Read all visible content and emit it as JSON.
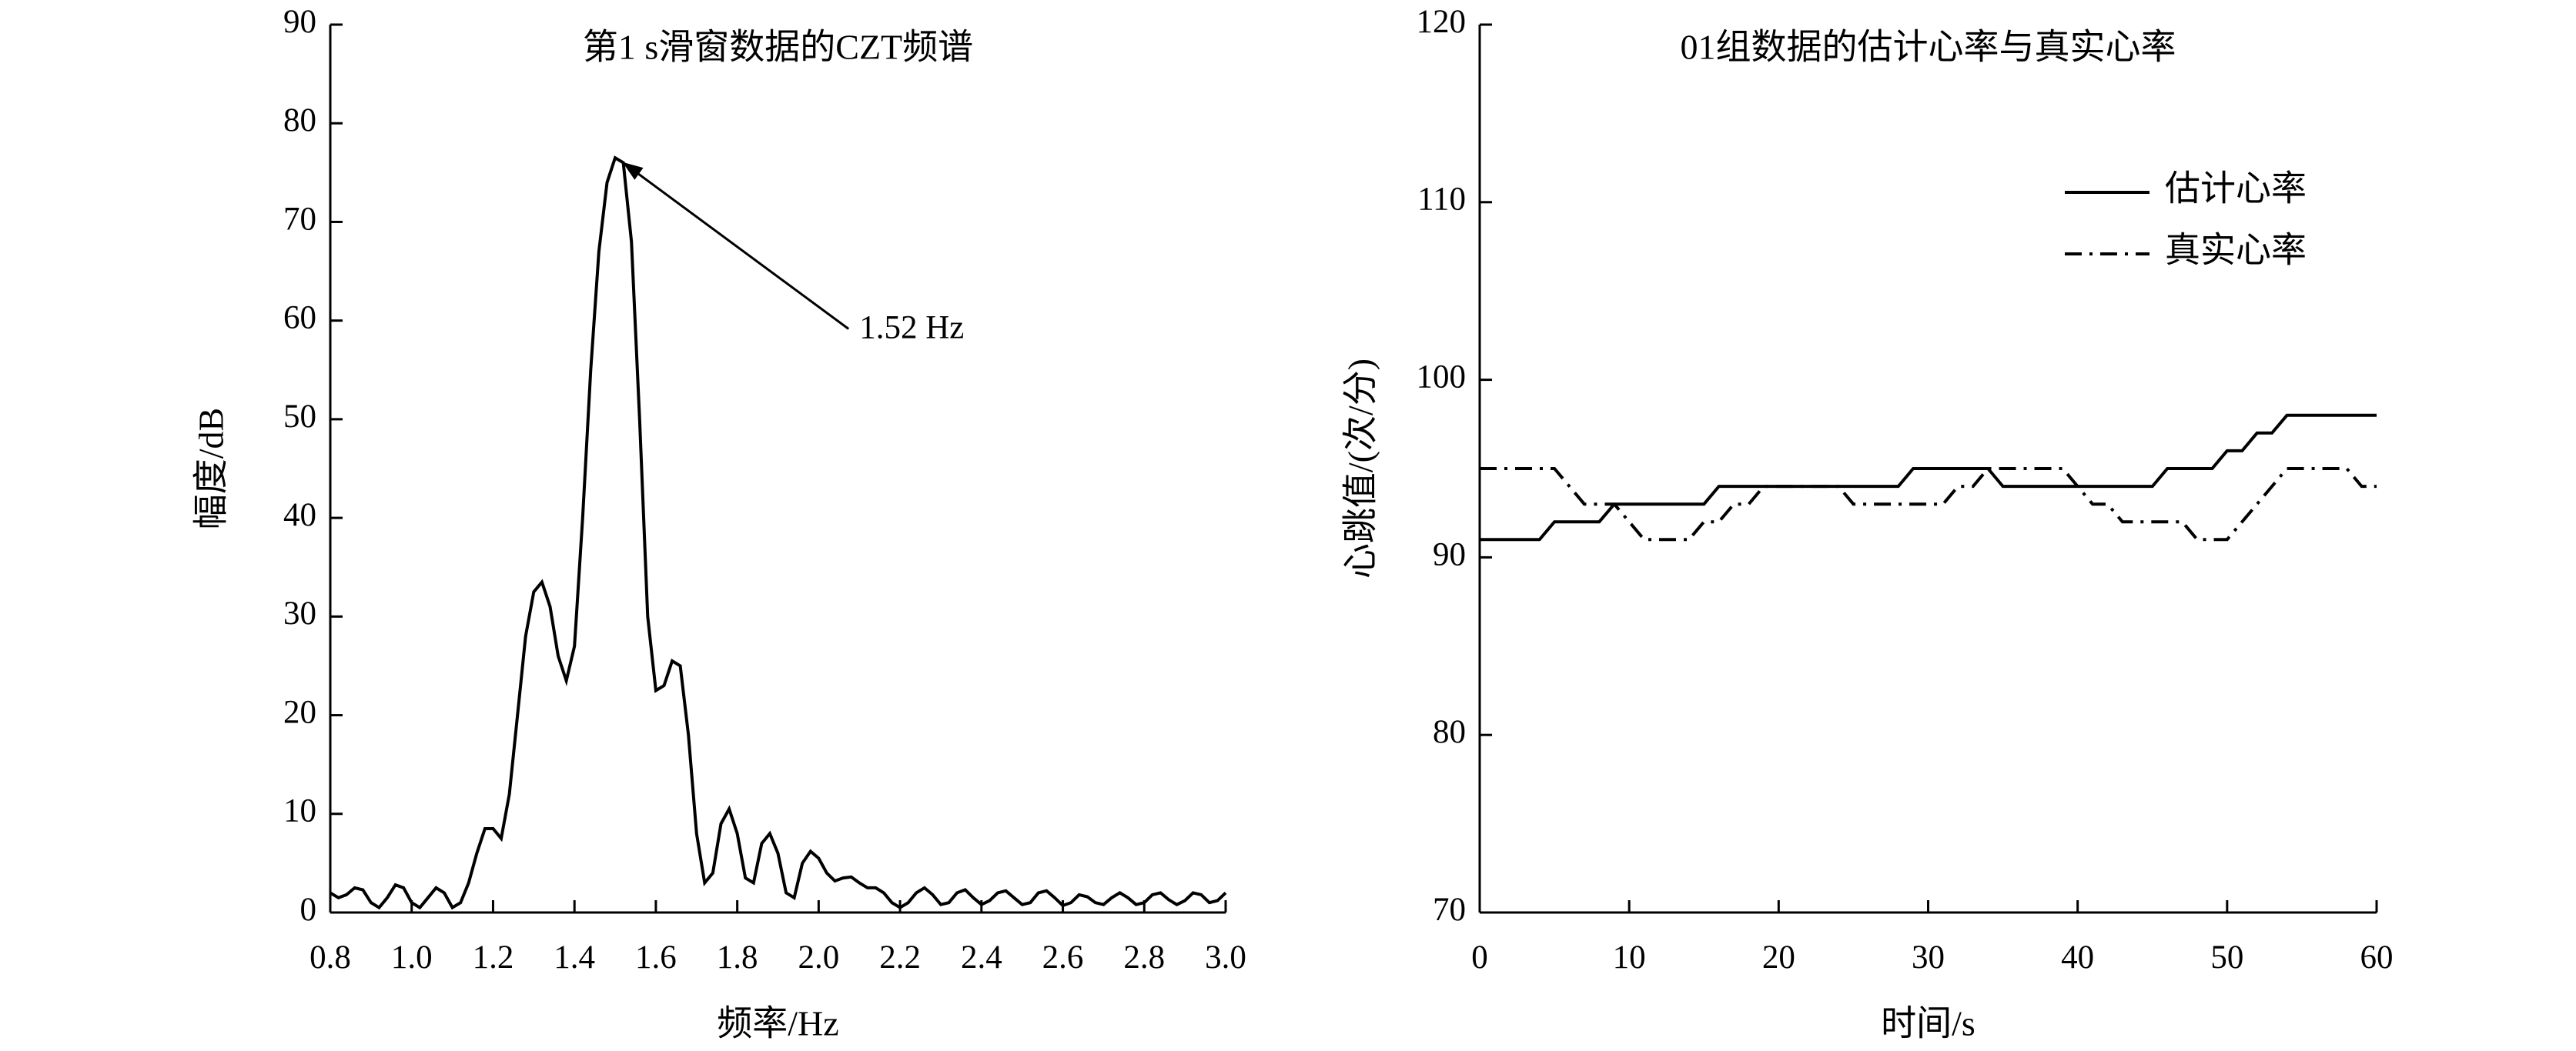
{
  "chart_data": [
    {
      "type": "line",
      "title": "第1 s滑窗数据的CZT频谱",
      "xlabel": "频率/Hz",
      "ylabel": "幅度/dB",
      "x": [
        0.8,
        0.82,
        0.84,
        0.86,
        0.88,
        0.9,
        0.92,
        0.94,
        0.96,
        0.98,
        1.0,
        1.02,
        1.04,
        1.06,
        1.08,
        1.1,
        1.12,
        1.14,
        1.16,
        1.18,
        1.2,
        1.22,
        1.24,
        1.26,
        1.28,
        1.3,
        1.32,
        1.34,
        1.36,
        1.38,
        1.4,
        1.42,
        1.44,
        1.46,
        1.48,
        1.5,
        1.52,
        1.54,
        1.56,
        1.58,
        1.6,
        1.62,
        1.64,
        1.66,
        1.68,
        1.7,
        1.72,
        1.74,
        1.76,
        1.78,
        1.8,
        1.82,
        1.84,
        1.86,
        1.88,
        1.9,
        1.92,
        1.94,
        1.96,
        1.98,
        2.0,
        2.02,
        2.04,
        2.06,
        2.08,
        2.1,
        2.12,
        2.14,
        2.16,
        2.18,
        2.2,
        2.22,
        2.24,
        2.26,
        2.28,
        2.3,
        2.32,
        2.34,
        2.36,
        2.38,
        2.4,
        2.42,
        2.44,
        2.46,
        2.48,
        2.5,
        2.52,
        2.54,
        2.56,
        2.58,
        2.6,
        2.62,
        2.64,
        2.66,
        2.68,
        2.7,
        2.72,
        2.74,
        2.76,
        2.78,
        2.8,
        2.82,
        2.84,
        2.86,
        2.88,
        2.9,
        2.92,
        2.94,
        2.96,
        2.98,
        3.0
      ],
      "series": [
        {
          "color": "#000000",
          "linestyle": "solid",
          "values": [
            2,
            1.5,
            1.8,
            2.5,
            2.3,
            1,
            0.5,
            1.5,
            2.8,
            2.5,
            1,
            0.5,
            1.5,
            2.5,
            2,
            0.5,
            1,
            3,
            6,
            8.5,
            8.5,
            7.5,
            12,
            20,
            28,
            32.5,
            33.5,
            31,
            26,
            23.5,
            27,
            40,
            55,
            67,
            74,
            76.5,
            76,
            68,
            50,
            30,
            22.5,
            23,
            25.5,
            25,
            18,
            8,
            3,
            4,
            9,
            10.5,
            8,
            3.5,
            3,
            7,
            8,
            6,
            2,
            1.5,
            5,
            6.2,
            5.5,
            4,
            3.2,
            3.5,
            3.6,
            3,
            2.5,
            2.5,
            2,
            1,
            0.5,
            1,
            2,
            2.5,
            1.8,
            0.8,
            1,
            2,
            2.3,
            1.5,
            0.8,
            1.2,
            2,
            2.2,
            1.5,
            0.8,
            1,
            2,
            2.2,
            1.5,
            0.7,
            1,
            1.8,
            1.6,
            1,
            0.8,
            1.5,
            2,
            1.5,
            0.8,
            1,
            1.8,
            2,
            1.3,
            0.8,
            1.2,
            2,
            1.8,
            1,
            1.2,
            2
          ]
        }
      ],
      "annotations": [
        {
          "text": "1.52 Hz",
          "xy": [
            1.52,
            76
          ],
          "xytext": [
            2.1,
            59
          ]
        }
      ],
      "xlim": [
        0.8,
        3.0
      ],
      "xticks": [
        0.8,
        {
          "value": 1,
          "label": "1.0"
        },
        1.2,
        1.4,
        1.6,
        1.8,
        {
          "value": 2,
          "label": "2.0"
        },
        2.2,
        2.4,
        2.6,
        2.8,
        {
          "value": 3,
          "label": "3.0"
        }
      ],
      "ylim": [
        0,
        90
      ],
      "yticks": [
        0,
        10,
        20,
        30,
        40,
        50,
        60,
        70,
        80,
        90
      ],
      "grid": false
    },
    {
      "type": "line",
      "title": "01组数据的估计心率与真实心率",
      "xlabel": "时间/s",
      "ylabel": "心跳值/(次/分)",
      "x": [
        0,
        1,
        2,
        3,
        4,
        5,
        6,
        7,
        8,
        9,
        10,
        11,
        12,
        13,
        14,
        15,
        16,
        17,
        18,
        19,
        20,
        21,
        22,
        23,
        24,
        25,
        26,
        27,
        28,
        29,
        30,
        31,
        32,
        33,
        34,
        35,
        36,
        37,
        38,
        39,
        40,
        41,
        42,
        43,
        44,
        45,
        46,
        47,
        48,
        49,
        50,
        51,
        52,
        53,
        54,
        55,
        56,
        57,
        58,
        59,
        60
      ],
      "series": [
        {
          "name": "估计心率",
          "color": "#000000",
          "linestyle": "solid",
          "values": [
            91,
            91,
            91,
            91,
            91,
            92,
            92,
            92,
            92,
            93,
            93,
            93,
            93,
            93,
            93,
            93,
            94,
            94,
            94,
            94,
            94,
            94,
            94,
            94,
            94,
            94,
            94,
            94,
            94,
            95,
            95,
            95,
            95,
            95,
            95,
            94,
            94,
            94,
            94,
            94,
            94,
            94,
            94,
            94,
            94,
            94,
            95,
            95,
            95,
            95,
            96,
            96,
            97,
            97,
            98,
            98,
            98,
            98,
            98,
            98,
            98
          ]
        },
        {
          "name": "真实心率",
          "color": "#000000",
          "linestyle": "dashdot",
          "values": [
            95,
            95,
            95,
            95,
            95,
            95,
            94,
            93,
            93,
            93,
            92,
            91,
            91,
            91,
            91,
            92,
            92,
            93,
            93,
            94,
            94,
            94,
            94,
            94,
            94,
            93,
            93,
            93,
            93,
            93,
            93,
            93,
            94,
            94,
            95,
            95,
            95,
            95,
            95,
            95,
            94,
            93,
            93,
            92,
            92,
            92,
            92,
            92,
            91,
            91,
            91,
            92,
            93,
            94,
            95,
            95,
            95,
            95,
            95,
            94,
            94
          ]
        }
      ],
      "legend": "upper right",
      "xlim": [
        0,
        60
      ],
      "xticks": [
        0,
        10,
        20,
        30,
        40,
        50,
        60
      ],
      "ylim": [
        70,
        120
      ],
      "yticks": [
        70,
        80,
        90,
        100,
        110,
        120
      ],
      "grid": false
    }
  ]
}
